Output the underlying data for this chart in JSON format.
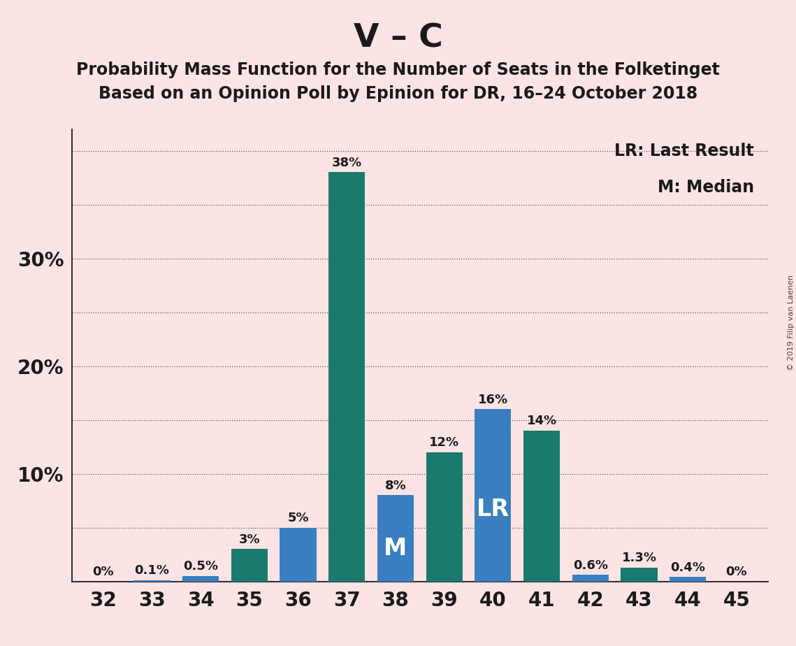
{
  "title_main": "V – C",
  "title_sub1": "Probability Mass Function for the Number of Seats in the Folketinget",
  "title_sub2": "Based on an Opinion Poll by Epinion for DR, 16–24 October 2018",
  "copyright": "© 2019 Filip van Laenen",
  "seats": [
    32,
    33,
    34,
    35,
    36,
    37,
    38,
    39,
    40,
    41,
    42,
    43,
    44,
    45
  ],
  "values": [
    0.0,
    0.1,
    0.5,
    3.0,
    5.0,
    38.0,
    8.0,
    12.0,
    16.0,
    14.0,
    0.6,
    1.3,
    0.4,
    0.0
  ],
  "labels": [
    "0%",
    "0.1%",
    "0.5%",
    "3%",
    "5%",
    "38%",
    "8%",
    "12%",
    "16%",
    "14%",
    "0.6%",
    "1.3%",
    "0.4%",
    "0%"
  ],
  "colors": [
    "#1a7a6e",
    "#3a7fbf",
    "#3a7fbf",
    "#1a7a6e",
    "#3a7fbf",
    "#1a7a6e",
    "#3a7fbf",
    "#1a7a6e",
    "#3a7fbf",
    "#1a7a6e",
    "#3a7fbf",
    "#1a7a6e",
    "#3a7fbf",
    "#1a7a6e"
  ],
  "median_seat": 38,
  "lr_seat": 40,
  "median_label": "M",
  "lr_label": "LR",
  "legend_lr": "LR: Last Result",
  "legend_m": "M: Median",
  "background_color": "#fce4e4",
  "bar_color_teal": "#1a7a6e",
  "bar_color_blue": "#3a7fbf",
  "ylim_max": 42,
  "ytick_vals": [
    10,
    20,
    30
  ],
  "ytick_labels": [
    "10%",
    "20%",
    "30%"
  ],
  "dotted_yticks": [
    5,
    10,
    15,
    20,
    25,
    30,
    35,
    40
  ],
  "label_fontsize": 13,
  "tick_fontsize": 20,
  "title_fontsize": 34,
  "subtitle_fontsize": 17,
  "legend_fontsize": 17,
  "inside_label_fontsize": 24
}
